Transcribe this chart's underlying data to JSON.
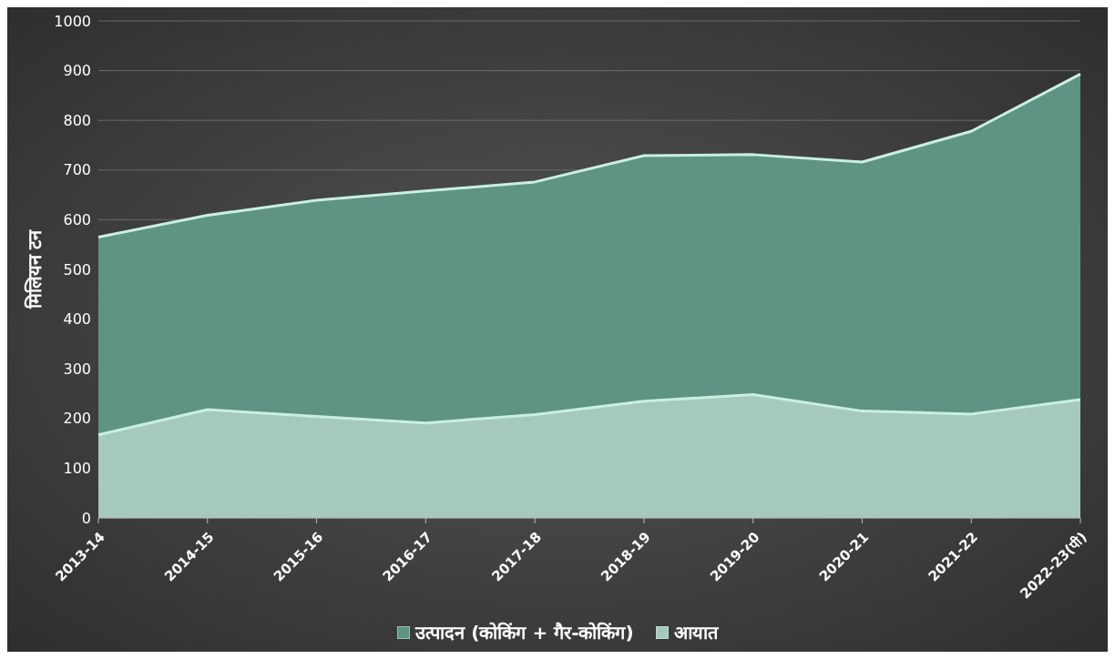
{
  "chart_data": {
    "type": "area",
    "ylabel": "मिलियन टन",
    "categories": [
      "2013-14",
      "2014-15",
      "2015-16",
      "2016-17",
      "2017-18",
      "2018-19",
      "2019-20",
      "2020-21",
      "2021-22",
      "2022-23(पी)"
    ],
    "series": [
      {
        "name": "उत्पादन (कोकिंग + गैर-कोकिंग)",
        "color": "#5f9384",
        "values": [
          565,
          609,
          639,
          658,
          676,
          729,
          731,
          716,
          778,
          893
        ]
      },
      {
        "name": "आयात",
        "color": "#a6c9be",
        "values": [
          167,
          218,
          204,
          191,
          208,
          235,
          248,
          215,
          209,
          238
        ]
      }
    ],
    "ylim": [
      0,
      1000
    ],
    "yticks": [
      0,
      100,
      200,
      300,
      400,
      500,
      600,
      700,
      800,
      900,
      1000
    ],
    "grid": "y",
    "legend": "bottom"
  }
}
